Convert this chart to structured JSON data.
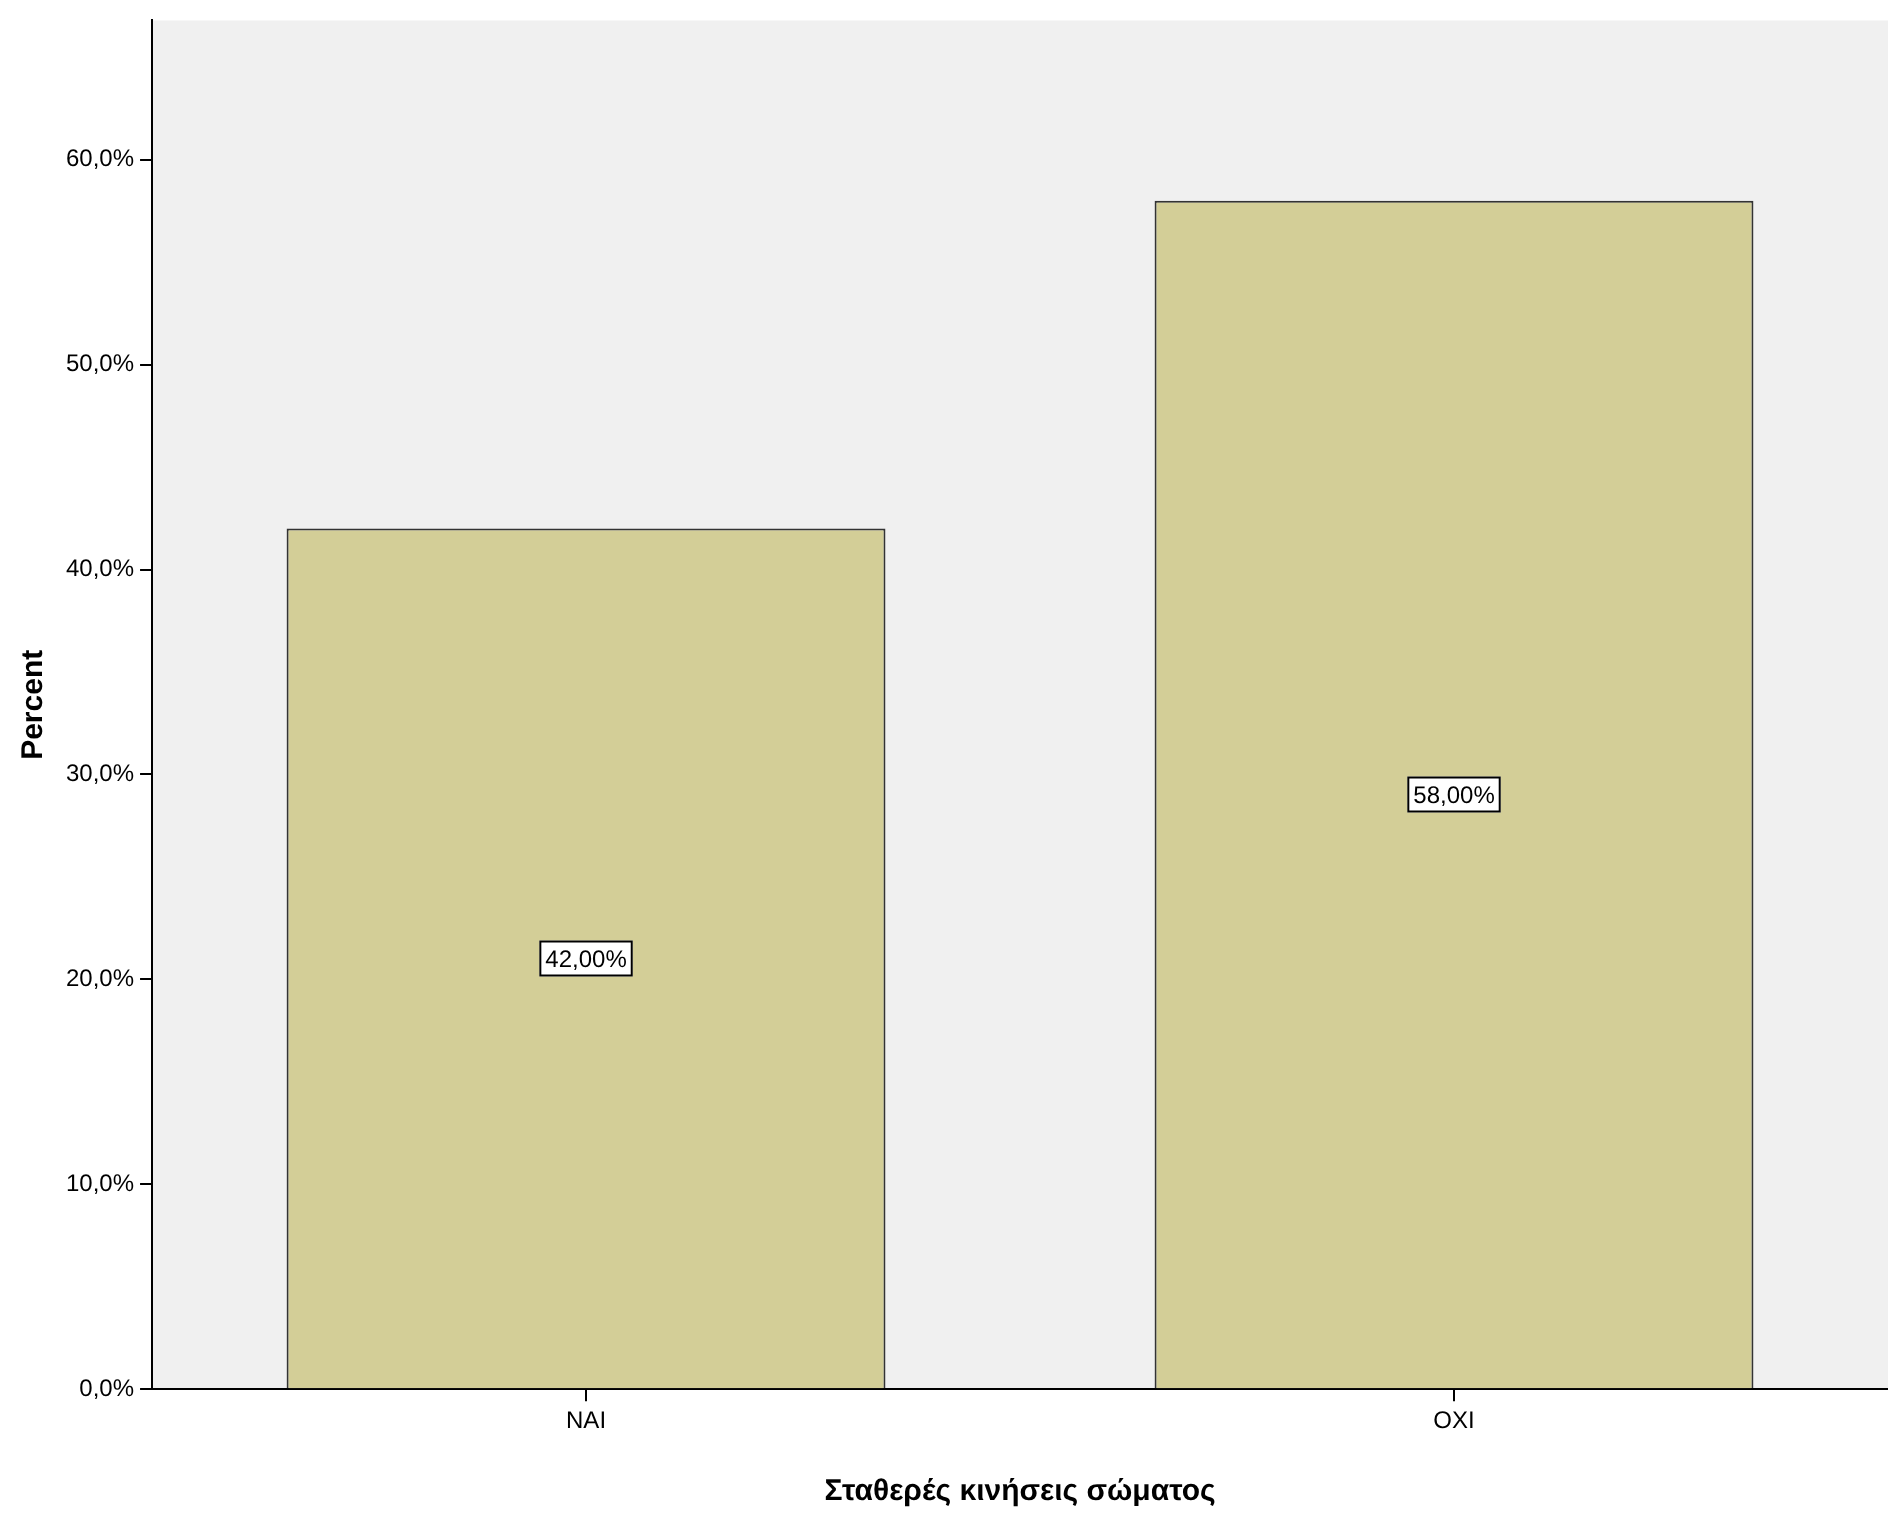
{
  "chart_data": {
    "type": "bar",
    "xlabel": "Σταθερές κινήσεις σώματος",
    "ylabel": "Percent",
    "categories": [
      "NAI",
      "OXI"
    ],
    "values": [
      42,
      58
    ],
    "color": "#d3ce97",
    "value_labels": [
      "42,00%",
      "58,00%"
    ],
    "ylim": [
      0,
      66.8
    ],
    "yticks": [
      {
        "value": 0,
        "label": "0,0%"
      },
      {
        "value": 10,
        "label": "10,0%"
      },
      {
        "value": 20,
        "label": "20,0%"
      },
      {
        "value": 30,
        "label": "30,0%"
      },
      {
        "value": 40,
        "label": "40,0%"
      },
      {
        "value": 50,
        "label": "50,0%"
      },
      {
        "value": 60,
        "label": "60,0%"
      }
    ],
    "grid": false,
    "legend": false
  }
}
